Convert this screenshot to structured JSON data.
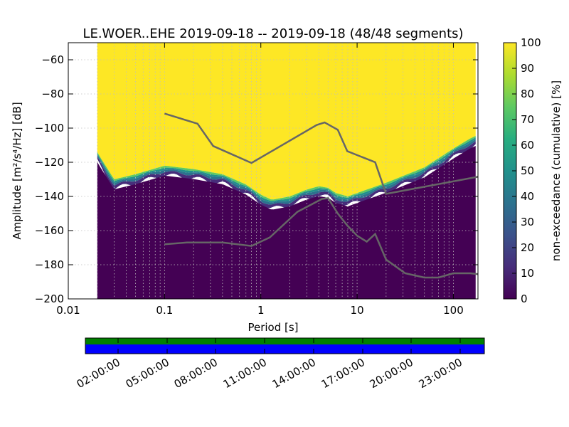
{
  "title": "LE.WOER..EHE   2019-09-18 -- 2019-09-18  (48/48 segments)",
  "chart_data": {
    "type": "heatmap",
    "title": "LE.WOER..EHE   2019-09-18 -- 2019-09-18  (48/48 segments)",
    "xlabel": "Period [s]",
    "ylabel": "Amplitude [m²/s⁴/Hz] [dB]",
    "x_scale": "log",
    "xlim": [
      0.01,
      180
    ],
    "ylim": [
      -200,
      -50
    ],
    "x_ticks": [
      0.01,
      0.1,
      1,
      10,
      100
    ],
    "x_tick_labels": [
      "0.01",
      "0.1",
      "1",
      "10",
      "100"
    ],
    "y_ticks": [
      -60,
      -80,
      -100,
      -120,
      -140,
      -160,
      -180,
      -200
    ],
    "y_tick_labels": [
      "−60",
      "−80",
      "−100",
      "−120",
      "−140",
      "−160",
      "−180",
      "−200"
    ],
    "grid": true,
    "data_period_min": 0.02,
    "colorbar": {
      "label": "non-exceedance (cumulative) [%]",
      "range": [
        0,
        100
      ],
      "ticks": [
        0,
        10,
        20,
        30,
        40,
        50,
        60,
        70,
        80,
        90,
        100
      ],
      "tick_labels": [
        "0",
        "10",
        "20",
        "30",
        "40",
        "50",
        "60",
        "70",
        "80",
        "90",
        "100"
      ],
      "colormap": "viridis",
      "colors": [
        "#440154",
        "#472d7b",
        "#3b528b",
        "#2c728e",
        "#21918c",
        "#28ae80",
        "#5ec962",
        "#addc30",
        "#fde725"
      ]
    },
    "exceedance_boundary": {
      "name": "100% non-exceedance lower edge",
      "period": [
        0.02,
        0.022,
        0.03,
        0.05,
        0.1,
        0.2,
        0.4,
        0.7,
        1.0,
        1.3,
        2,
        3,
        4,
        5,
        6,
        8,
        10,
        20,
        50,
        100,
        150,
        180
      ],
      "amplitude": [
        -114,
        -118,
        -130,
        -127,
        -122,
        -124,
        -127,
        -133,
        -139,
        -142,
        -140,
        -136,
        -134,
        -135,
        -138,
        -140,
        -138,
        -132,
        -123,
        -112,
        -106,
        -104
      ]
    },
    "series": [
      {
        "name": "upper reference curve",
        "color": "#666666",
        "period": [
          0.1,
          0.22,
          0.32,
          0.8,
          3.8,
          4.6,
          6.3,
          7.9,
          15.4,
          20,
          180
        ],
        "amplitude": [
          -91.5,
          -97.4,
          -110.5,
          -120.4,
          -98.2,
          -96.7,
          -101.0,
          -113.5,
          -120.0,
          -138.5,
          -128.5
        ]
      },
      {
        "name": "lower reference curve",
        "color": "#666666",
        "period": [
          0.1,
          0.17,
          0.4,
          0.8,
          1.24,
          2.4,
          4.3,
          5.0,
          6.3,
          7.9,
          10,
          12.6,
          15.4,
          20,
          31.6,
          50,
          70,
          100,
          150,
          180
        ],
        "amplitude": [
          -168.0,
          -167.0,
          -167.0,
          -169.0,
          -164.0,
          -149.0,
          -141.5,
          -141.0,
          -150.0,
          -157.0,
          -163.0,
          -166.5,
          -162.0,
          -177.0,
          -185.0,
          -187.5,
          -187.5,
          -185.0,
          -185.0,
          -185.5
        ]
      }
    ]
  },
  "timeline": {
    "tick_labels": [
      "02:00:00",
      "05:00:00",
      "08:00:00",
      "11:00:00",
      "14:00:00",
      "17:00:00",
      "20:00:00",
      "23:00:00"
    ],
    "bars": [
      {
        "name": "coverage",
        "color": "#008000"
      },
      {
        "name": "data",
        "color": "#0000ff"
      }
    ]
  }
}
